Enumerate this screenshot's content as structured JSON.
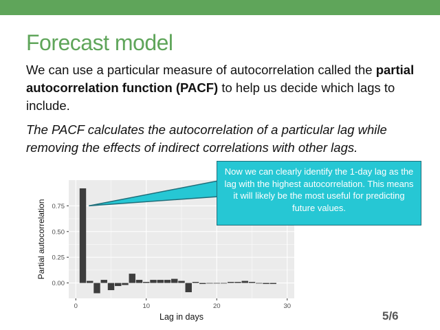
{
  "slide": {
    "title": "Forecast model",
    "intro_before": "We can use a particular measure of autocorrelation called the ",
    "intro_bold": "partial autocorrelation function (PACF)",
    "intro_after": " to help us decide which lags to include.",
    "italic_text": "The PACF calculates the autocorrelation of a particular lag while removing the effects of indirect correlations with other lags.",
    "callout_text": "Now we can clearly identify the 1-day lag as the lag with the highest autocorrelation. This means it will likely be the most useful for predicting future values.",
    "page_number": "5/6"
  },
  "colors": {
    "accent": "#5fa55a",
    "callout_bg": "#26c7d4",
    "bar": "#3d3d3d",
    "panel": "#ebebeb"
  },
  "chart_data": {
    "type": "bar",
    "xlabel": "Lag in days",
    "ylabel": "Partial autocorrelation",
    "xlim": [
      -1,
      31
    ],
    "ylim": [
      -0.15,
      1.0
    ],
    "x_ticks": [
      0,
      10,
      20,
      30
    ],
    "y_ticks": [
      0.0,
      0.25,
      0.5,
      0.75
    ],
    "y_tick_labels": [
      "0.00",
      "0.25",
      "0.50",
      "0.75"
    ],
    "grid": true,
    "x": [
      1,
      2,
      3,
      4,
      5,
      6,
      7,
      8,
      9,
      10,
      11,
      12,
      13,
      14,
      15,
      16,
      17,
      18,
      19,
      20,
      21,
      22,
      23,
      24,
      25,
      26,
      27,
      28
    ],
    "values": [
      0.92,
      0.02,
      -0.1,
      0.03,
      -0.07,
      -0.03,
      -0.02,
      0.09,
      0.03,
      0.01,
      0.03,
      0.03,
      0.03,
      0.04,
      0.02,
      -0.09,
      0.01,
      -0.01,
      0.0,
      0.0,
      0.0,
      0.01,
      0.01,
      0.02,
      0.01,
      0.0,
      -0.01,
      -0.01
    ]
  }
}
